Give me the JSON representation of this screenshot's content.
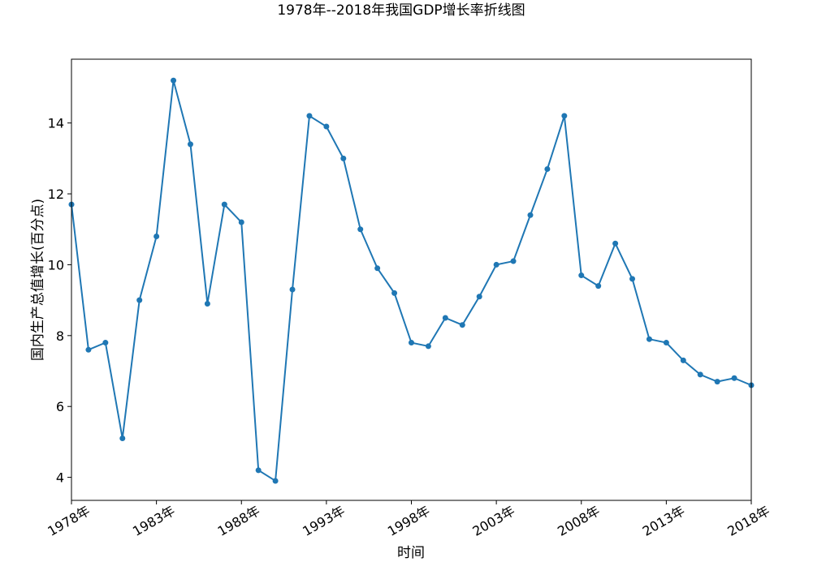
{
  "chart_data": {
    "type": "line",
    "title": "1978年--2018年我国GDP增长率折线图",
    "xlabel": "时间",
    "ylabel": "国内生产总值增长(百分点)",
    "xlim": [
      1978,
      2018
    ],
    "ylim": [
      3.35,
      15.8
    ],
    "xticks": [
      1978,
      1983,
      1988,
      1993,
      1998,
      2003,
      2008,
      2013,
      2018
    ],
    "xtick_labels": [
      "1978年",
      "1983年",
      "1988年",
      "1993年",
      "1998年",
      "2003年",
      "2008年",
      "2013年",
      "2018年"
    ],
    "yticks": [
      4,
      6,
      8,
      10,
      12,
      14
    ],
    "ytick_labels": [
      "4",
      "6",
      "8",
      "10",
      "12",
      "14"
    ],
    "grid": false,
    "x": [
      1978,
      1979,
      1980,
      1981,
      1982,
      1983,
      1984,
      1985,
      1986,
      1987,
      1988,
      1989,
      1990,
      1991,
      1992,
      1993,
      1994,
      1995,
      1996,
      1997,
      1998,
      1999,
      2000,
      2001,
      2002,
      2003,
      2004,
      2005,
      2006,
      2007,
      2008,
      2009,
      2010,
      2011,
      2012,
      2013,
      2014,
      2015,
      2016,
      2017,
      2018
    ],
    "series": [
      {
        "color": "#1f77b4",
        "marker": "circle",
        "values": [
          11.7,
          7.6,
          7.8,
          5.1,
          9.0,
          10.8,
          15.2,
          13.4,
          8.9,
          11.7,
          11.2,
          4.2,
          3.9,
          9.3,
          14.2,
          13.9,
          13.0,
          11.0,
          9.9,
          9.2,
          7.8,
          7.7,
          8.5,
          8.3,
          9.1,
          10.0,
          10.1,
          11.4,
          12.7,
          14.2,
          9.7,
          9.4,
          10.6,
          9.6,
          7.9,
          7.8,
          7.3,
          6.9,
          6.7,
          6.8,
          6.6
        ]
      }
    ]
  }
}
